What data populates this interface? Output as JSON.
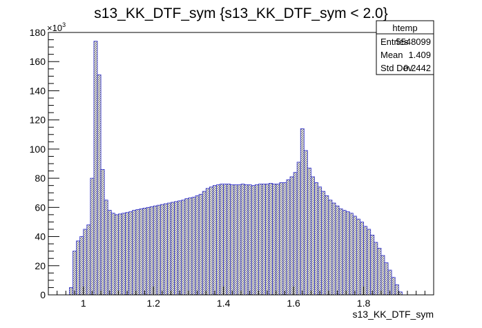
{
  "chart_data": {
    "type": "bar",
    "title": "s13_KK_DTF_sym {s13_KK_DTF_sym < 2.0}",
    "xlabel": "s13_KK_DTF_sym",
    "ylabel": "",
    "y_multiplier_label": "×10",
    "y_multiplier_exponent": "3",
    "xlim": [
      0.9,
      2.0
    ],
    "ylim": [
      0,
      180
    ],
    "x_ticks": [
      1,
      1.2,
      1.4,
      1.6,
      1.8
    ],
    "x_tick_labels": [
      "1",
      "1.2",
      "1.4",
      "1.6",
      "1.8"
    ],
    "y_ticks": [
      0,
      20,
      40,
      60,
      80,
      100,
      120,
      140,
      160,
      180
    ],
    "y_tick_labels": [
      "0",
      "20",
      "40",
      "60",
      "80",
      "100",
      "120",
      "140",
      "160",
      "180"
    ],
    "bin_width": 0.01,
    "bin_low_edges": [
      0.96,
      0.97,
      0.98,
      0.99,
      1.0,
      1.01,
      1.02,
      1.03,
      1.04,
      1.05,
      1.06,
      1.07,
      1.08,
      1.09,
      1.1,
      1.11,
      1.12,
      1.13,
      1.14,
      1.15,
      1.16,
      1.17,
      1.18,
      1.19,
      1.2,
      1.21,
      1.22,
      1.23,
      1.24,
      1.25,
      1.26,
      1.27,
      1.28,
      1.29,
      1.3,
      1.31,
      1.32,
      1.33,
      1.34,
      1.35,
      1.36,
      1.37,
      1.38,
      1.39,
      1.4,
      1.41,
      1.42,
      1.43,
      1.44,
      1.45,
      1.46,
      1.47,
      1.48,
      1.49,
      1.5,
      1.51,
      1.52,
      1.53,
      1.54,
      1.55,
      1.56,
      1.57,
      1.58,
      1.59,
      1.6,
      1.61,
      1.62,
      1.63,
      1.64,
      1.65,
      1.66,
      1.67,
      1.68,
      1.69,
      1.7,
      1.71,
      1.72,
      1.73,
      1.74,
      1.75,
      1.76,
      1.77,
      1.78,
      1.79,
      1.8,
      1.81,
      1.82,
      1.83,
      1.84,
      1.85,
      1.86,
      1.87,
      1.88,
      1.89,
      1.9
    ],
    "values": [
      5,
      30,
      37,
      40,
      45,
      48,
      80,
      174,
      151,
      86,
      65,
      58,
      56,
      55,
      55.5,
      56,
      56.5,
      57,
      58,
      58.5,
      59,
      59.5,
      60,
      60.5,
      61,
      61.5,
      62,
      62.5,
      63,
      63.5,
      64,
      64.5,
      65,
      66,
      66.5,
      67,
      68,
      69,
      71,
      73,
      74,
      75,
      75.5,
      76,
      76,
      76,
      75.5,
      75.5,
      75.5,
      76,
      75.5,
      75.5,
      75,
      75.5,
      76,
      76,
      76,
      76.5,
      76,
      76,
      77,
      77,
      79,
      81,
      84,
      91,
      114,
      99,
      87,
      81,
      77,
      74,
      71,
      68,
      65,
      63,
      61,
      59,
      58,
      57,
      56,
      54,
      52,
      50,
      47,
      45,
      41,
      36,
      32,
      27,
      22,
      17,
      12,
      7,
      2
    ],
    "series_color": "#2b2bcc",
    "fill_pattern": "hatched",
    "stats_box": {
      "title": "htemp",
      "rows": [
        {
          "label": "Entries",
          "value": "5548099"
        },
        {
          "label": "Mean",
          "value": "1.409"
        },
        {
          "label": "Std Dev",
          "value": "0.2442"
        }
      ]
    },
    "legend_placement": "top-right",
    "grid": false
  }
}
